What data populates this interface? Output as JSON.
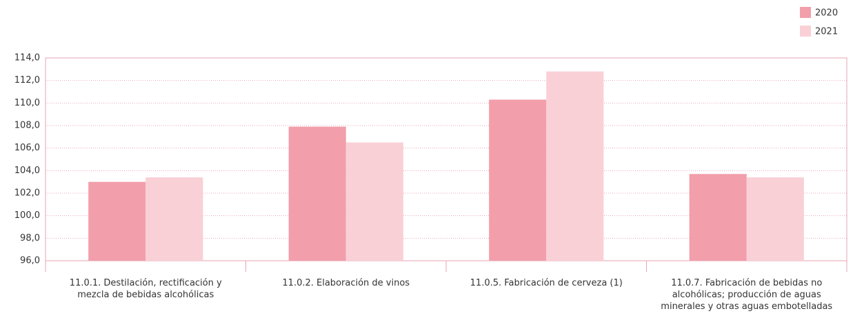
{
  "chart_data": {
    "type": "bar",
    "categories": [
      "11.0.1. Destilación, rectificación y mezcla de bebidas alcohólicas",
      "11.0.2. Elaboración de vinos",
      "11.0.5. Fabricación de cerveza (1)",
      "11.0.7. Fabricación de bebidas no alcohólicas; producción de aguas minerales y otras aguas embotelladas"
    ],
    "series": [
      {
        "name": "2020",
        "color": "#f29eab",
        "values": [
          103.0,
          107.9,
          110.3,
          103.7
        ]
      },
      {
        "name": "2021",
        "color": "#f9d0d6",
        "values": [
          103.4,
          106.5,
          112.8,
          103.4
        ]
      }
    ],
    "ylim": [
      96,
      114
    ],
    "yticks": [
      {
        "value": 96,
        "label": "96,0"
      },
      {
        "value": 98,
        "label": "98,0"
      },
      {
        "value": 100,
        "label": "100,0"
      },
      {
        "value": 102,
        "label": "102,0"
      },
      {
        "value": 104,
        "label": "104,0"
      },
      {
        "value": 106,
        "label": "106,0"
      },
      {
        "value": 108,
        "label": "108,0"
      },
      {
        "value": 110,
        "label": "110,0"
      },
      {
        "value": 112,
        "label": "112,0"
      },
      {
        "value": 114,
        "label": "114,0"
      }
    ],
    "grid": true,
    "legend": "top-right"
  }
}
